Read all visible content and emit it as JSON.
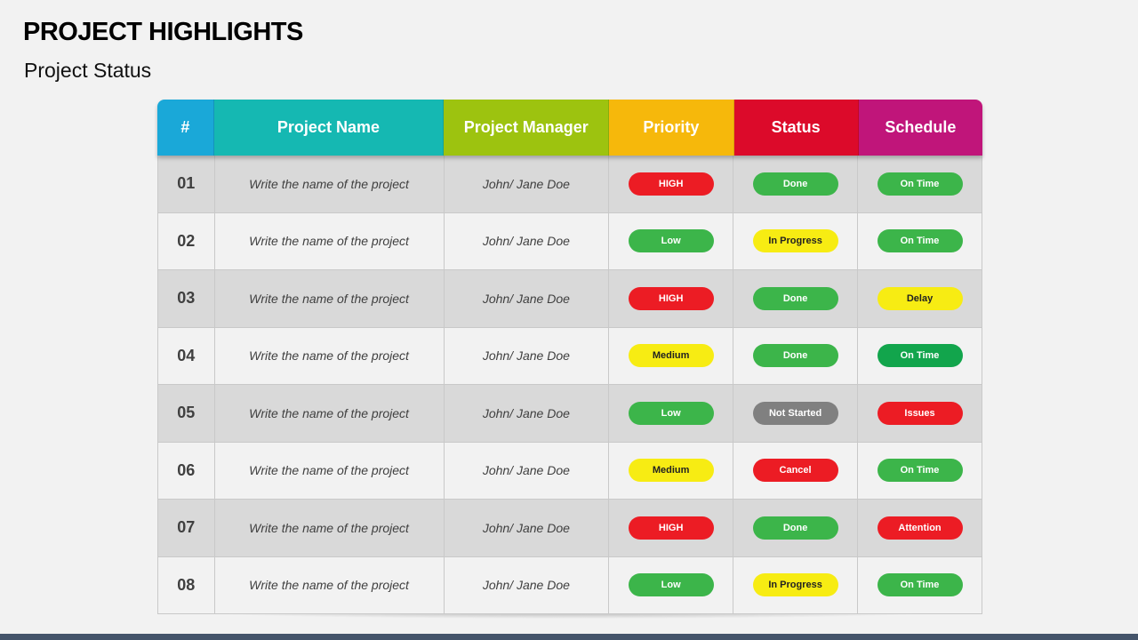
{
  "header": {
    "title": "PROJECT HIGHLIGHTS",
    "subtitle": "Project Status"
  },
  "columns": [
    {
      "label": "#",
      "color": "#1aa8d8"
    },
    {
      "label": "Project Name",
      "color": "#15b8b2"
    },
    {
      "label": "Project Manager",
      "color": "#9dc30f"
    },
    {
      "label": "Priority",
      "color": "#f6b80b"
    },
    {
      "label": "Status",
      "color": "#dc0a2a"
    },
    {
      "label": "Schedule",
      "color": "#c0157a"
    }
  ],
  "status_colors": {
    "HIGH": {
      "bg": "#ec1c24",
      "fg": "#ffffff"
    },
    "Low": {
      "bg": "#3cb54a",
      "fg": "#ffffff"
    },
    "Medium": {
      "bg": "#f7ec13",
      "fg": "#222222"
    },
    "Done": {
      "bg": "#3cb54a",
      "fg": "#ffffff"
    },
    "In Progress": {
      "bg": "#f7ec13",
      "fg": "#222222"
    },
    "Not Started": {
      "bg": "#808080",
      "fg": "#ffffff"
    },
    "Cancel": {
      "bg": "#ec1c24",
      "fg": "#ffffff"
    },
    "On Time": {
      "bg": "#3cb54a",
      "fg": "#ffffff"
    },
    "On Time Dark": {
      "bg": "#12a54c",
      "fg": "#ffffff"
    },
    "Delay": {
      "bg": "#f7ec13",
      "fg": "#222222"
    },
    "Issues": {
      "bg": "#ec1c24",
      "fg": "#ffffff"
    },
    "Attention": {
      "bg": "#ec1c24",
      "fg": "#ffffff"
    }
  },
  "rows": [
    {
      "num": "01",
      "name": "Write the name of the project",
      "manager": "John/ Jane Doe",
      "priority": "HIGH",
      "status": "Done",
      "schedule": "On Time"
    },
    {
      "num": "02",
      "name": "Write the name of the project",
      "manager": "John/ Jane Doe",
      "priority": "Low",
      "status": "In Progress",
      "schedule": "On Time"
    },
    {
      "num": "03",
      "name": "Write the name of the project",
      "manager": "John/ Jane Doe",
      "priority": "HIGH",
      "status": "Done",
      "schedule": "Delay"
    },
    {
      "num": "04",
      "name": "Write the name of the project",
      "manager": "John/ Jane Doe",
      "priority": "Medium",
      "status": "Done",
      "schedule": "On Time"
    },
    {
      "num": "05",
      "name": "Write the name of the project",
      "manager": "John/ Jane Doe",
      "priority": "Low",
      "status": "Not Started",
      "schedule": "Issues"
    },
    {
      "num": "06",
      "name": "Write the name of the project",
      "manager": "John/ Jane Doe",
      "priority": "Medium",
      "status": "Cancel",
      "schedule": "On Time"
    },
    {
      "num": "07",
      "name": "Write the name of the project",
      "manager": "John/ Jane Doe",
      "priority": "HIGH",
      "status": "Done",
      "schedule": "Attention"
    },
    {
      "num": "08",
      "name": "Write the name of the project",
      "manager": "John/ Jane Doe",
      "priority": "Low",
      "status": "In Progress",
      "schedule": "On Time"
    }
  ]
}
